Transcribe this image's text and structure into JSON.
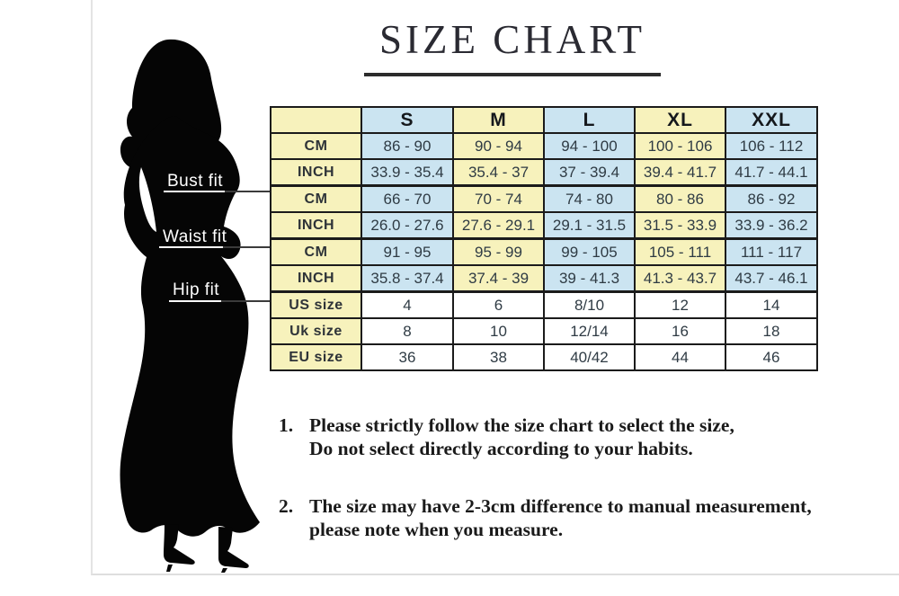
{
  "title": "SIZE CHART",
  "figure": {
    "labels": [
      {
        "text": "Bust fit"
      },
      {
        "text": "Waist fit"
      },
      {
        "text": "Hip fit"
      }
    ]
  },
  "table": {
    "sizes": [
      "S",
      "M",
      "L",
      "XL",
      "XXL"
    ],
    "rows": [
      {
        "label": "CM",
        "values": [
          "86 - 90",
          "90 - 94",
          "94 - 100",
          "100 - 106",
          "106 - 112"
        ]
      },
      {
        "label": "INCH",
        "values": [
          "33.9 - 35.4",
          "35.4 - 37",
          "37 - 39.4",
          "39.4 - 41.7",
          "41.7 - 44.1"
        ],
        "groupEnd": true
      },
      {
        "label": "CM",
        "values": [
          "66 - 70",
          "70 - 74",
          "74 - 80",
          "80 - 86",
          "86 - 92"
        ]
      },
      {
        "label": "INCH",
        "values": [
          "26.0 - 27.6",
          "27.6 - 29.1",
          "29.1 - 31.5",
          "31.5 - 33.9",
          "33.9 - 36.2"
        ],
        "groupEnd": true
      },
      {
        "label": "CM",
        "values": [
          "91 - 95",
          "95 - 99",
          "99 - 105",
          "105 - 111",
          "111 - 117"
        ]
      },
      {
        "label": "INCH",
        "values": [
          "35.8 - 37.4",
          "37.4 - 39",
          "39 - 41.3",
          "41.3 - 43.7",
          "43.7 - 46.1"
        ],
        "groupEnd": true
      },
      {
        "label": "US size",
        "values": [
          "4",
          "6",
          "8/10",
          "12",
          "14"
        ],
        "plain": true
      },
      {
        "label": "Uk size",
        "values": [
          "8",
          "10",
          "12/14",
          "16",
          "18"
        ],
        "plain": true
      },
      {
        "label": "EU size",
        "values": [
          "36",
          "38",
          "40/42",
          "44",
          "46"
        ],
        "plain": true
      }
    ]
  },
  "notes": [
    {
      "num": "1.",
      "line1": "Please strictly follow the size chart to select the size,",
      "line2": "Do not select directly according to your habits."
    },
    {
      "num": "2.",
      "line1": "The size may have 2-3cm difference  to manual measurement,",
      "line2": "please note when you measure."
    }
  ],
  "colors": {
    "cell_yellow": "#F7F2BC",
    "cell_blue": "#CBE4F1",
    "cell_white": "#FFFFFF",
    "table_border": "#1B1B1B",
    "silhouette": "#050505",
    "title_text": "#2A2A32"
  }
}
